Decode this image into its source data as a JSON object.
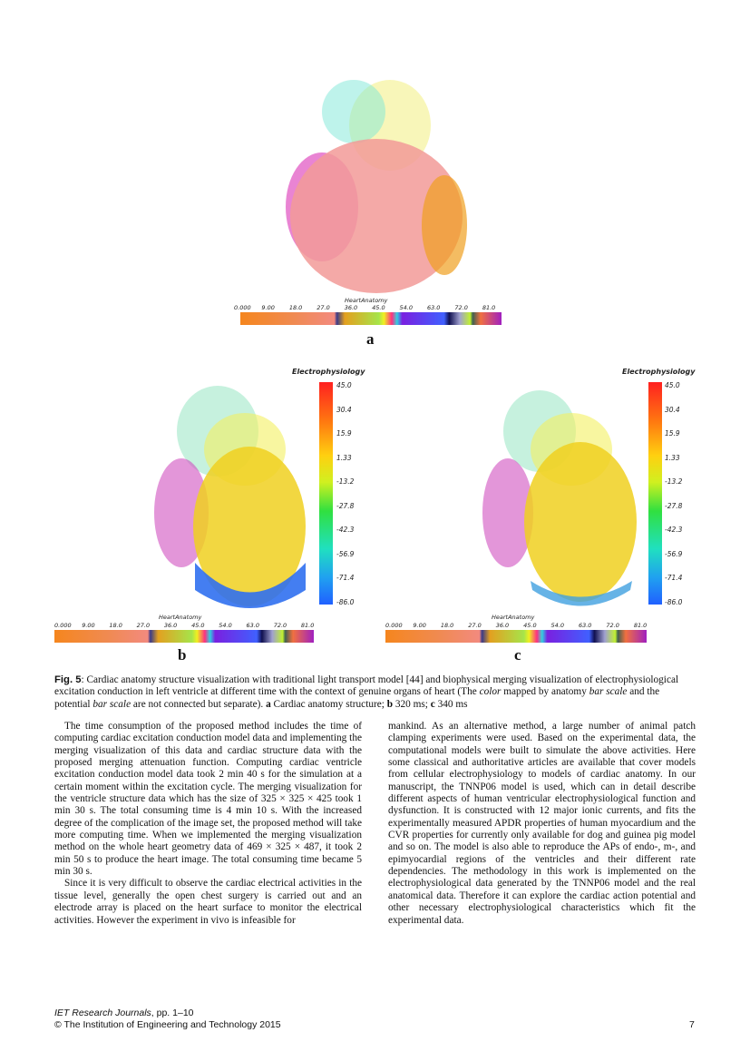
{
  "figure": {
    "panel_labels": [
      "a",
      "b",
      "c"
    ],
    "heart_anatomy_title": "HeartAnatomy",
    "heart_anatomy_ticks": [
      "0.000",
      "9.00",
      "18.0",
      "27.0",
      "36.0",
      "45.0",
      "54.0",
      "63.0",
      "72.0",
      "81.0"
    ],
    "electrophysiology_title": "Electrophysiology",
    "electrophysiology_ticks": [
      "45.0",
      "30.4",
      "15.9",
      "1.33",
      "-13.2",
      "-27.8",
      "-42.3",
      "-56.9",
      "-71.4",
      "-86.0"
    ]
  },
  "caption": {
    "label": "Fig. 5",
    "text": ": Cardiac anatomy structure visualization with traditional light transport model [44] and biophysical merging visualization of electrophysiological excitation conduction in left ventricle at different time with the context of genuine organs of heart (The ",
    "italic1": "color",
    "text2": " mapped by anatomy ",
    "italic2": "bar scale",
    "text3": " and the potential ",
    "italic3": "bar scale",
    "text4": " are not connected but separate). ",
    "a": "a",
    "a_text": " Cardiac anatomy structure; ",
    "b": "b",
    "b_text": " 320 ms; ",
    "c": "c",
    "c_text": " 340 ms"
  },
  "body": {
    "left": [
      "The time consumption of the proposed method includes the time of computing cardiac excitation conduction model data and implementing the merging visualization of this data and cardiac structure data with the proposed merging attenuation function. Computing cardiac ventricle excitation conduction model data took 2 min 40 s for the simulation at a certain moment within the excitation cycle. The merging visualization for the ventricle structure data which has the size of 325 × 325 × 425 took 1 min 30 s. The total consuming time is 4 min 10 s. With the increased degree of the complication of the image set, the proposed method will take more computing time. When we implemented the merging visualization method on the whole heart geometry data of 469 × 325 × 487, it took 2 min 50 s to produce the heart image. The total consuming time became 5 min 30 s.",
      "Since it is very difficult to observe the cardiac electrical activities in the tissue level, generally the open chest surgery is carried out and an electrode array is placed on the heart surface to monitor the electrical activities. However the experiment in vivo is infeasible for"
    ],
    "right": "mankind. As an alternative method, a large number of animal patch clamping experiments were used. Based on the experimental data, the computational models were built to simulate the above activities. Here some classical and authoritative articles are available that cover models from cellular electrophysiology to models of cardiac anatomy. In our manuscript, the TNNP06 model is used, which can in detail describe different aspects of human ventricular electrophysiological function and dysfunction. It is constructed with 12 major ionic currents, and fits the experimentally measured APDR properties of human myocardium and the CVR properties for currently only available for dog and guinea pig model and so on. The model is also able to reproduce the APs of endo-, m-, and epimyocardial regions of the ventricles and their different rate dependencies. The methodology in this work is implemented on the electrophysiological data generated by the TNNP06 model and the real anatomical data. Therefore it can explore the cardiac action potential and other necessary electrophysiological characteristics which fit the experimental data."
  },
  "footer": {
    "journal": "IET Research Journals",
    "pages": ", pp. 1–10",
    "copyright": "© The Institution of Engineering and Technology 2015",
    "page_number": "7"
  }
}
